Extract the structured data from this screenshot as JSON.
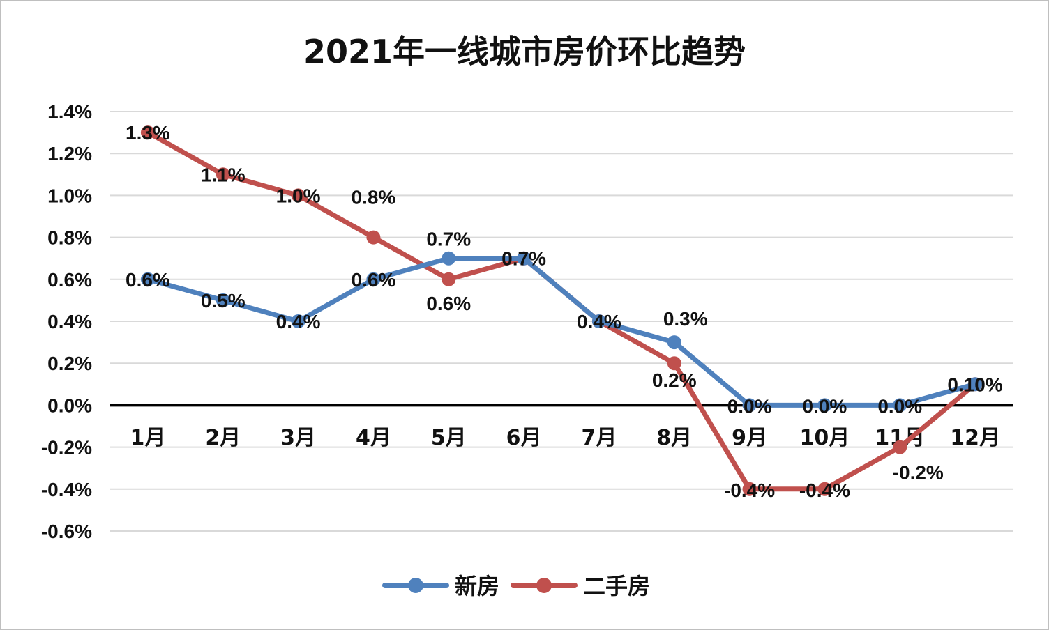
{
  "chart_data": {
    "type": "line",
    "title": "2021年一线城市房价环比趋势",
    "categories": [
      "1月",
      "2月",
      "3月",
      "4月",
      "5月",
      "6月",
      "7月",
      "8月",
      "9月",
      "10月",
      "11月",
      "12月"
    ],
    "ylim": [
      -0.6,
      1.4
    ],
    "ytick_step": 0.2,
    "y_tick_labels": [
      "1.4%",
      "1.2%",
      "1.0%",
      "0.8%",
      "0.6%",
      "0.4%",
      "0.2%",
      "0.0%",
      "-0.2%",
      "-0.4%",
      "-0.6%"
    ],
    "grid": true,
    "legend_position": "bottom",
    "series": [
      {
        "name": "新房",
        "color": "#4f81bd",
        "values": [
          0.6,
          0.5,
          0.4,
          0.6,
          0.7,
          0.7,
          0.4,
          0.3,
          0.0,
          0.0,
          0.0,
          0.1
        ],
        "labels": [
          "0.6%",
          "0.5%",
          "0.4%",
          "0.6%",
          "0.7%",
          "",
          "",
          "0.3%",
          "0.0%",
          "0.0%",
          "0.0%",
          ""
        ]
      },
      {
        "name": "二手房",
        "color": "#c0504d",
        "values": [
          1.3,
          1.1,
          1.0,
          0.8,
          0.6,
          0.7,
          0.4,
          0.2,
          -0.4,
          -0.4,
          -0.2,
          0.1
        ],
        "labels": [
          "1.3%",
          "1.1%",
          "1.0%",
          "0.8%",
          "0.6%",
          "0.7%",
          "0.4%",
          "0.2%",
          "-0.4%",
          "-0.4%",
          "-0.2%",
          "0.10%"
        ]
      }
    ]
  }
}
